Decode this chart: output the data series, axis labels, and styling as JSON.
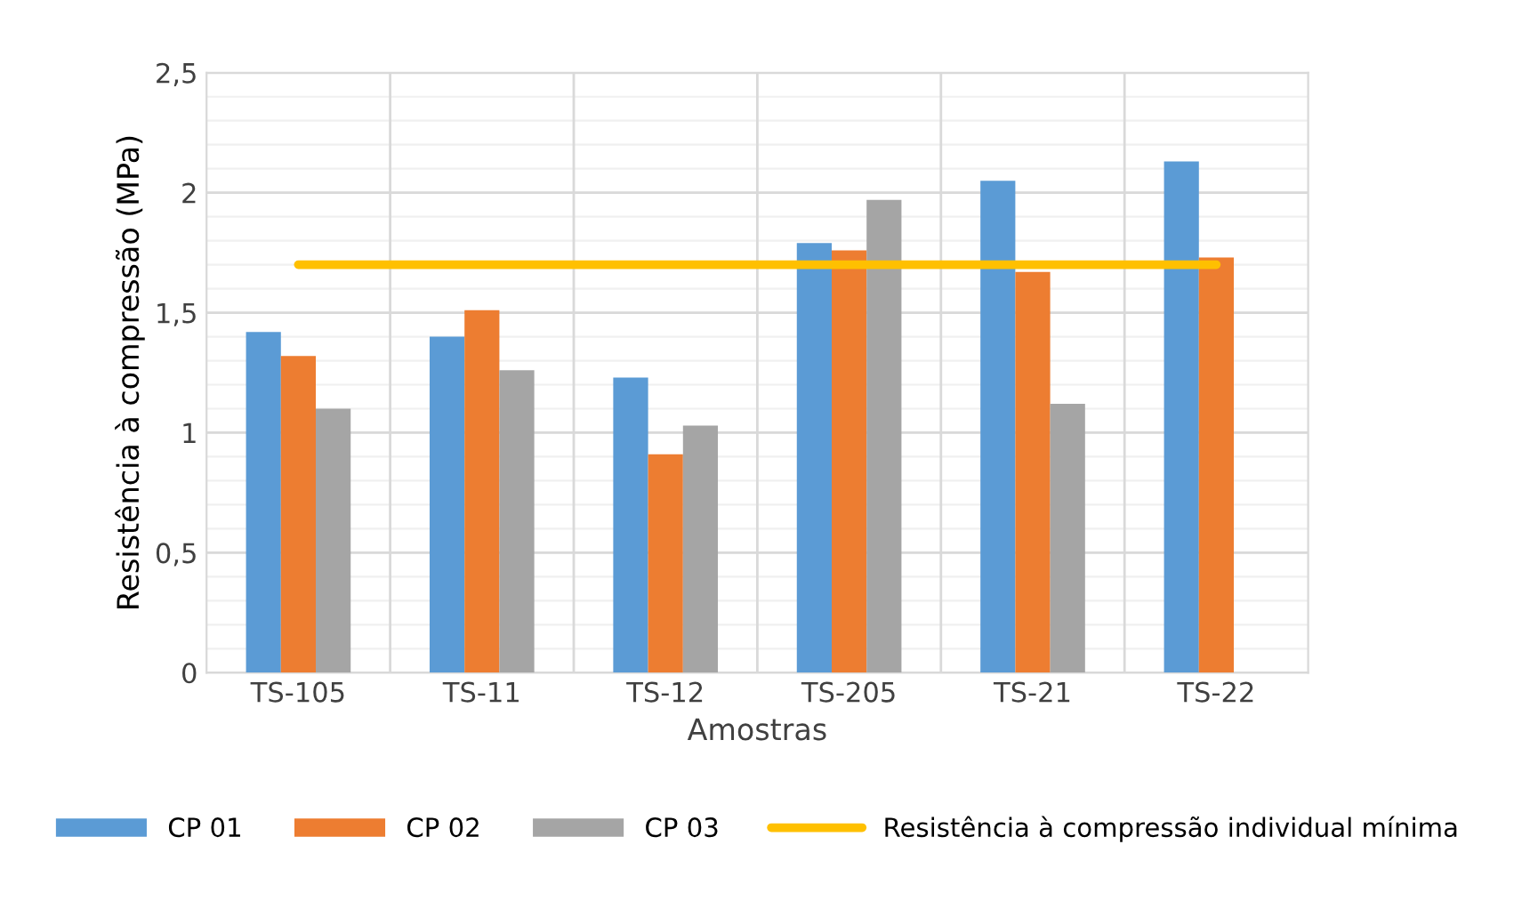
{
  "chart_data": {
    "type": "bar",
    "xlabel": "Amostras",
    "ylabel": "Resistência à compressão (MPa)",
    "categories": [
      "TS-105",
      "TS-11",
      "TS-12",
      "TS-205",
      "TS-21",
      "TS-22"
    ],
    "series": [
      {
        "name": "CP 01",
        "color": "#5b9bd5",
        "values": [
          1.42,
          1.4,
          1.23,
          1.79,
          2.05,
          2.13
        ]
      },
      {
        "name": "CP 02",
        "color": "#ed7d31",
        "values": [
          1.32,
          1.51,
          0.91,
          1.76,
          1.67,
          1.73
        ]
      },
      {
        "name": "CP 03",
        "color": "#a5a5a5",
        "values": [
          1.1,
          1.26,
          1.03,
          1.97,
          1.12,
          null
        ]
      },
      {
        "name": "Resistência à compressão individual mínima",
        "type": "line",
        "color": "#ffc000",
        "values": [
          1.7,
          1.7,
          1.7,
          1.7,
          1.7,
          1.7
        ]
      }
    ],
    "ylim": [
      0,
      2.5
    ],
    "yticks": [
      {
        "value": 0,
        "label": "0"
      },
      {
        "value": 0.5,
        "label": "0,5"
      },
      {
        "value": 1,
        "label": "1"
      },
      {
        "value": 1.5,
        "label": "1,5"
      },
      {
        "value": 2,
        "label": "2"
      },
      {
        "value": 2.5,
        "label": "2,5"
      }
    ],
    "grid": true,
    "legend": "bottom"
  }
}
